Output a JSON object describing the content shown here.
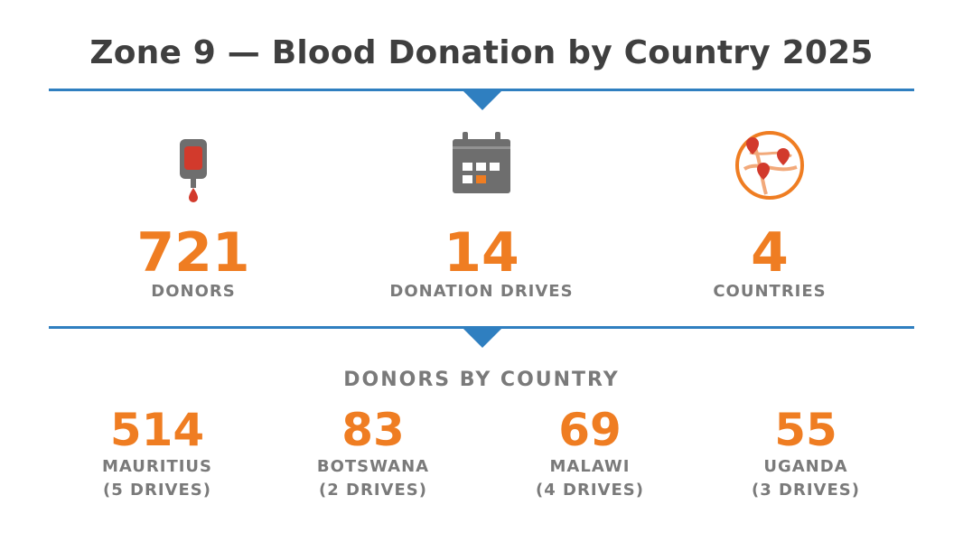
{
  "title": "Zone 9 — Blood Donation by Country 2025",
  "colors": {
    "accent": "#ef7d22",
    "divider": "#2f7fc0",
    "text_gray": "#7a7a7a",
    "title": "#3f3f3f",
    "blood_red": "#d23a2c"
  },
  "stats": [
    {
      "icon": "blood-bag-icon",
      "value": "721",
      "label": "DONORS"
    },
    {
      "icon": "calendar-icon",
      "value": "14",
      "label": "DONATION DRIVES"
    },
    {
      "icon": "map-pins-icon",
      "value": "4",
      "label": "COUNTRIES"
    }
  ],
  "section_title": "DONORS BY COUNTRY",
  "countries": [
    {
      "value": "514",
      "name": "MAURITIUS",
      "drives": "(5 DRIVES)"
    },
    {
      "value": "83",
      "name": "BOTSWANA",
      "drives": "(2 DRIVES)"
    },
    {
      "value": "69",
      "name": "MALAWI",
      "drives": "(4 DRIVES)"
    },
    {
      "value": "55",
      "name": "UGANDA",
      "drives": "(3 DRIVES)"
    }
  ]
}
